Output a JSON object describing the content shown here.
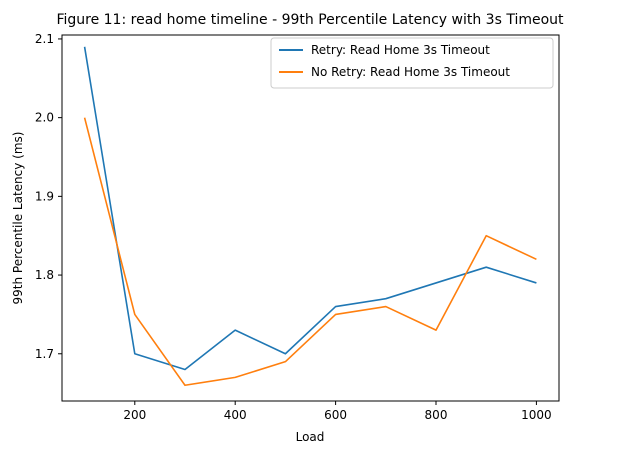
{
  "chart_data": {
    "type": "line",
    "title": "Figure 11: read home timeline - 99th Percentile Latency with 3s Timeout",
    "xlabel": "Load",
    "ylabel": "99th Percentile Latency (ms)",
    "xlim": [
      55,
      1045
    ],
    "ylim": [
      1.64,
      2.105
    ],
    "xticks": [
      200,
      400,
      600,
      800,
      1000
    ],
    "yticks": [
      1.7,
      1.8,
      1.9,
      2.0,
      2.1
    ],
    "ytick_labels": [
      "1.7",
      "1.8",
      "1.9",
      "2.0",
      "2.1"
    ],
    "grid": false,
    "legend_position": "top-right",
    "x": [
      100,
      200,
      300,
      400,
      500,
      600,
      700,
      800,
      900,
      1000
    ],
    "series": [
      {
        "name": "Retry: Read Home 3s Timeout",
        "color": "#1f77b4",
        "values": [
          2.09,
          1.7,
          1.68,
          1.73,
          1.7,
          1.76,
          1.77,
          1.79,
          1.81,
          1.79
        ]
      },
      {
        "name": "No Retry: Read Home 3s Timeout",
        "color": "#ff7f0e",
        "values": [
          2.0,
          1.75,
          1.66,
          1.67,
          1.69,
          1.75,
          1.76,
          1.73,
          1.85,
          1.82
        ]
      }
    ]
  }
}
